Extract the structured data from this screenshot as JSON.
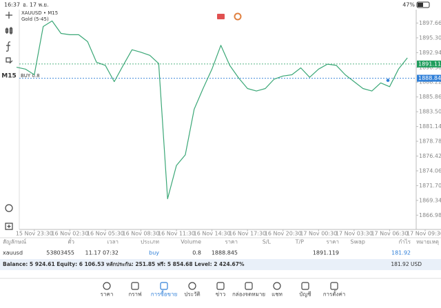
{
  "status_bar": {
    "time": "16:37",
    "date": "อ. 17 พ.ย.",
    "battery": "47%"
  },
  "chart_overlay": {
    "symbol": "XAUUSD • M15",
    "indicator": "Gold (5-45)",
    "timeframe": "M15",
    "order_label": "BUY 0.8"
  },
  "chart_data": {
    "type": "line",
    "categories": [
      null,
      null,
      "15 Nov 23:30",
      null,
      null,
      null,
      "16 Nov 02:30",
      null,
      null,
      null,
      "16 Nov 05:30",
      null,
      null,
      null,
      "16 Nov 08:30",
      null,
      null,
      null,
      "16 Nov 11:30",
      null,
      null,
      null,
      "16 Nov 14:30",
      null,
      null,
      null,
      "16 Nov 17:30",
      null,
      null,
      null,
      "16 Nov 20:30",
      null,
      null,
      null,
      "17 Nov 00:30",
      null,
      null,
      null,
      "17 Nov 03:30",
      null,
      null,
      null,
      "17 Nov 06:30",
      null,
      null,
      null,
      "17 Nov 09:30"
    ],
    "series": [
      {
        "name": "XAUUSD",
        "color": "#3aa776",
        "values": [
          1890.6,
          1890.3,
          1889.4,
          1897.1,
          1898.0,
          1896.0,
          1895.8,
          1895.8,
          1894.7,
          1891.4,
          1890.9,
          1888.3,
          1890.9,
          1893.4,
          1893.0,
          1892.5,
          1891.2,
          1869.6,
          1874.9,
          1876.6,
          1883.9,
          1887.2,
          1890.3,
          1894.1,
          1890.9,
          1888.9,
          1887.2,
          1886.8,
          1887.2,
          1888.7,
          1889.2,
          1889.4,
          1890.5,
          1889.0,
          1890.3,
          1891.1,
          1890.9,
          1889.4,
          1888.3,
          1887.2,
          1886.8,
          1888.1,
          1887.5,
          1890.3,
          1892.1,
          null,
          null
        ]
      }
    ],
    "ylim": [
      1864.7,
      1899.8
    ],
    "yticks": [
      {
        "value": 1897.66,
        "label": "1897.660"
      },
      {
        "value": 1895.3,
        "label": "1895.300"
      },
      {
        "value": 1892.94,
        "label": "1892.940"
      },
      {
        "value": 1890.58,
        "label": "1890.580"
      },
      {
        "value": 1888.22,
        "label": "1888.220"
      },
      {
        "value": 1885.86,
        "label": "1885.860"
      },
      {
        "value": 1883.5,
        "label": "1883.500"
      },
      {
        "value": 1881.14,
        "label": "1881.140"
      },
      {
        "value": 1878.78,
        "label": "1878.780"
      },
      {
        "value": 1876.42,
        "label": "1876.420"
      },
      {
        "value": 1874.06,
        "label": "1874.060"
      },
      {
        "value": 1871.7,
        "label": "1871.700"
      },
      {
        "value": 1869.34,
        "label": "1869.340"
      },
      {
        "value": 1866.98,
        "label": "1866.980"
      }
    ],
    "current_price": 1891.119,
    "current_price_color": "#1f9d5c",
    "buy_price": 1888.845,
    "buy_price_color": "#2f7fd8"
  },
  "trades": {
    "columns": [
      "สัญลักษณ์",
      "ตั๋ว",
      "เวลา",
      "ประเภท",
      "Volume",
      "ราคา",
      "S/L",
      "T/P",
      "ราคา",
      "Swap",
      "กำไร",
      "หมายเหตุ"
    ],
    "row": {
      "symbol": "xauusd",
      "ticket": "53803455",
      "time": "11.17 07:32",
      "type": "buy",
      "volume": "0.8",
      "open_price": "1888.845",
      "price": "1891.119",
      "profit": "181.92"
    },
    "summary": "Balance: 5 924.61 Equity: 6 106.53 หลักประกัน: 251.85 ฟรี: 5 854.68 Level: 2 424.67%",
    "total": "181.92  USD"
  },
  "nav": [
    "ราคา",
    "กราฟ",
    "การซื้อขาย",
    "ประวัติ",
    "ข่าว",
    "กล่องจดหมาย",
    "แชท",
    "บัญชี",
    "การตั้งค่า"
  ]
}
